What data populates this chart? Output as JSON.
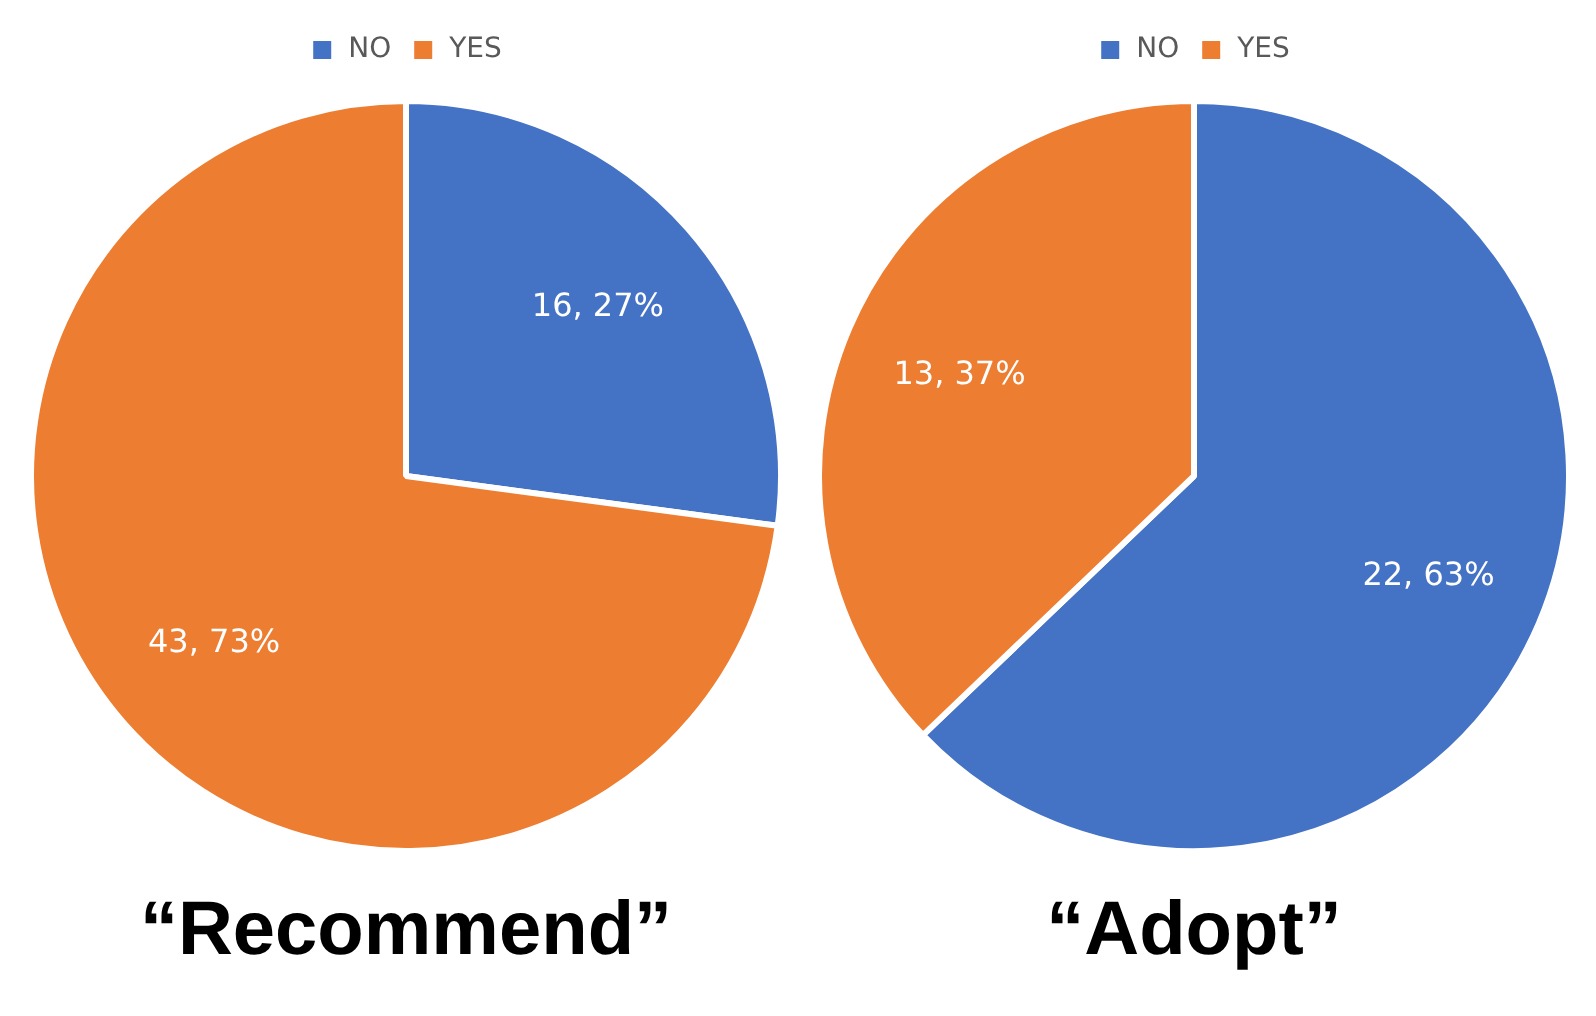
{
  "chart_data": [
    {
      "type": "pie",
      "title": "“Recommend”",
      "categories": [
        "NO",
        "YES"
      ],
      "values": [
        16,
        43
      ],
      "colors": [
        "#4472c4",
        "#ed7d31"
      ],
      "value_labels": [
        "16, 27%",
        "43, 73%"
      ],
      "legend": "top"
    },
    {
      "type": "pie",
      "title": "“Adopt”",
      "categories": [
        "NO",
        "YES"
      ],
      "values": [
        22,
        13
      ],
      "colors": [
        "#4472c4",
        "#ed7d31"
      ],
      "value_labels": [
        "22, 63%",
        "13, 37%"
      ],
      "legend": "top"
    }
  ]
}
